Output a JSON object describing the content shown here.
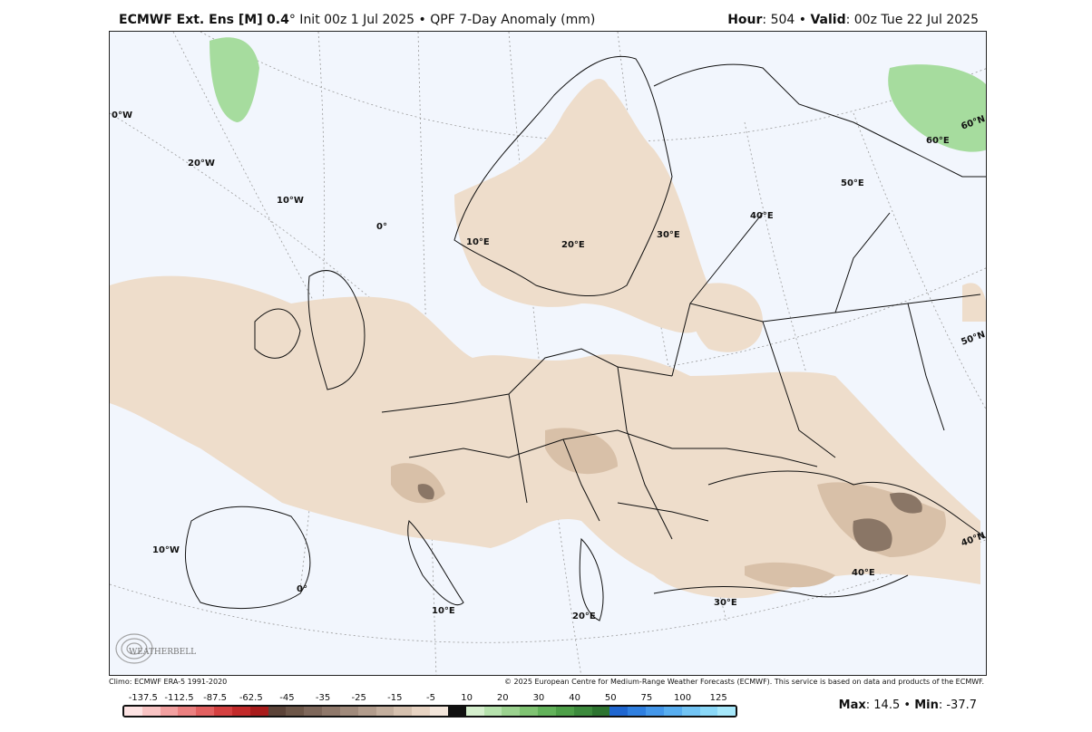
{
  "header": {
    "model": "ECMWF Ext. Ens [M]",
    "resolution": "0.4",
    "degree": "°",
    "init": " Init 00z 1 Jul 2025",
    "bullet": "•",
    "product": "QPF 7-Day Anomaly (mm)",
    "hour_label": "Hour",
    "hour_value": ": 504",
    "valid_label": "Valid",
    "valid_value": ": 00z Tue 22 Jul 2025"
  },
  "map": {
    "longitude_labels": [
      "0°W",
      "20°W",
      "10°W",
      "0°",
      "10°E",
      "20°E",
      "30°E",
      "40°E",
      "50°E",
      "60°E",
      "10°W",
      "0°",
      "10°E",
      "20°E",
      "30°E",
      "40°E"
    ],
    "latitude_labels": [
      "60°N",
      "50°N",
      "40°N"
    ],
    "colors": {
      "ocean": "#f2f6fd",
      "dry_light": "#eeddcb",
      "dry_medium": "#d8c0a8",
      "dry_dark": "#8a7666",
      "wet_light": "#a6dc9e",
      "border": "#111111"
    }
  },
  "credits": {
    "left": "Climo: ECMWF ERA-5 1991-2020",
    "right": "© 2025 European Centre for Medium-Range Weather Forecasts (ECMWF). This service is based on data and products of the ECMWF."
  },
  "logo": {
    "text": "WEATHERBELL"
  },
  "colorbar": {
    "labels": [
      "-137.5",
      "-112.5",
      "-87.5",
      "-62.5",
      "-45",
      "-35",
      "-25",
      "-15",
      "-5",
      "10",
      "20",
      "30",
      "40",
      "50",
      "75",
      "100",
      "125"
    ],
    "colors": [
      "#fde3e3",
      "#f9c4c4",
      "#f2a0a0",
      "#eb8080",
      "#e26060",
      "#d44040",
      "#c22a2a",
      "#a81b1b",
      "#5c4338",
      "#6d5648",
      "#7e675a",
      "#8f786a",
      "#a08a7b",
      "#b29c8c",
      "#c3ae9d",
      "#d5c0ae",
      "#e7d3c2",
      "#f3e6db",
      "#111111",
      "#d5efcd",
      "#b6e2ad",
      "#9bd28f",
      "#7fc372",
      "#62b25a",
      "#4d9f48",
      "#3c8a3c",
      "#2d7430",
      "#1f66d0",
      "#2f7fe0",
      "#4497ea",
      "#58aef0",
      "#72c4f4",
      "#8ad8f8",
      "#a6e8fb"
    ]
  },
  "stats": {
    "max_label": "Max",
    "max_value": ": 14.5",
    "min_label": "Min",
    "min_value": ": -37.7"
  }
}
